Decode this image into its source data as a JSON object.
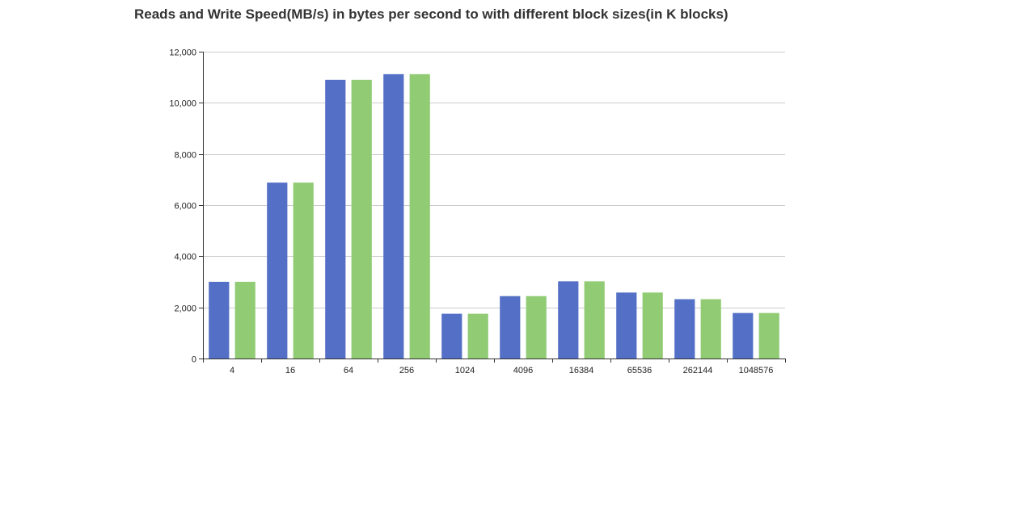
{
  "chart_data": {
    "type": "bar",
    "title": "Reads and Write Speed(MB/s) in bytes per second to with different block sizes(in K blocks)",
    "xlabel": "",
    "ylabel": "",
    "categories": [
      "4",
      "16",
      "64",
      "256",
      "1024",
      "4096",
      "16384",
      "65536",
      "262144",
      "1048576"
    ],
    "series": [
      {
        "color": "#5470c6",
        "values": [
          3000,
          6880,
          10900,
          11120,
          1750,
          2440,
          3020,
          2580,
          2320,
          1780
        ]
      },
      {
        "color": "#91cc75",
        "values": [
          3000,
          6880,
          10900,
          11120,
          1750,
          2440,
          3020,
          2580,
          2320,
          1780
        ]
      }
    ],
    "ylim": [
      0,
      12000
    ],
    "yticks": [
      0,
      2000,
      4000,
      6000,
      8000,
      10000,
      12000
    ],
    "ytick_labels": [
      "0",
      "2,000",
      "4,000",
      "6,000",
      "8,000",
      "10,000",
      "12,000"
    ],
    "grid": true,
    "legend": "none"
  }
}
